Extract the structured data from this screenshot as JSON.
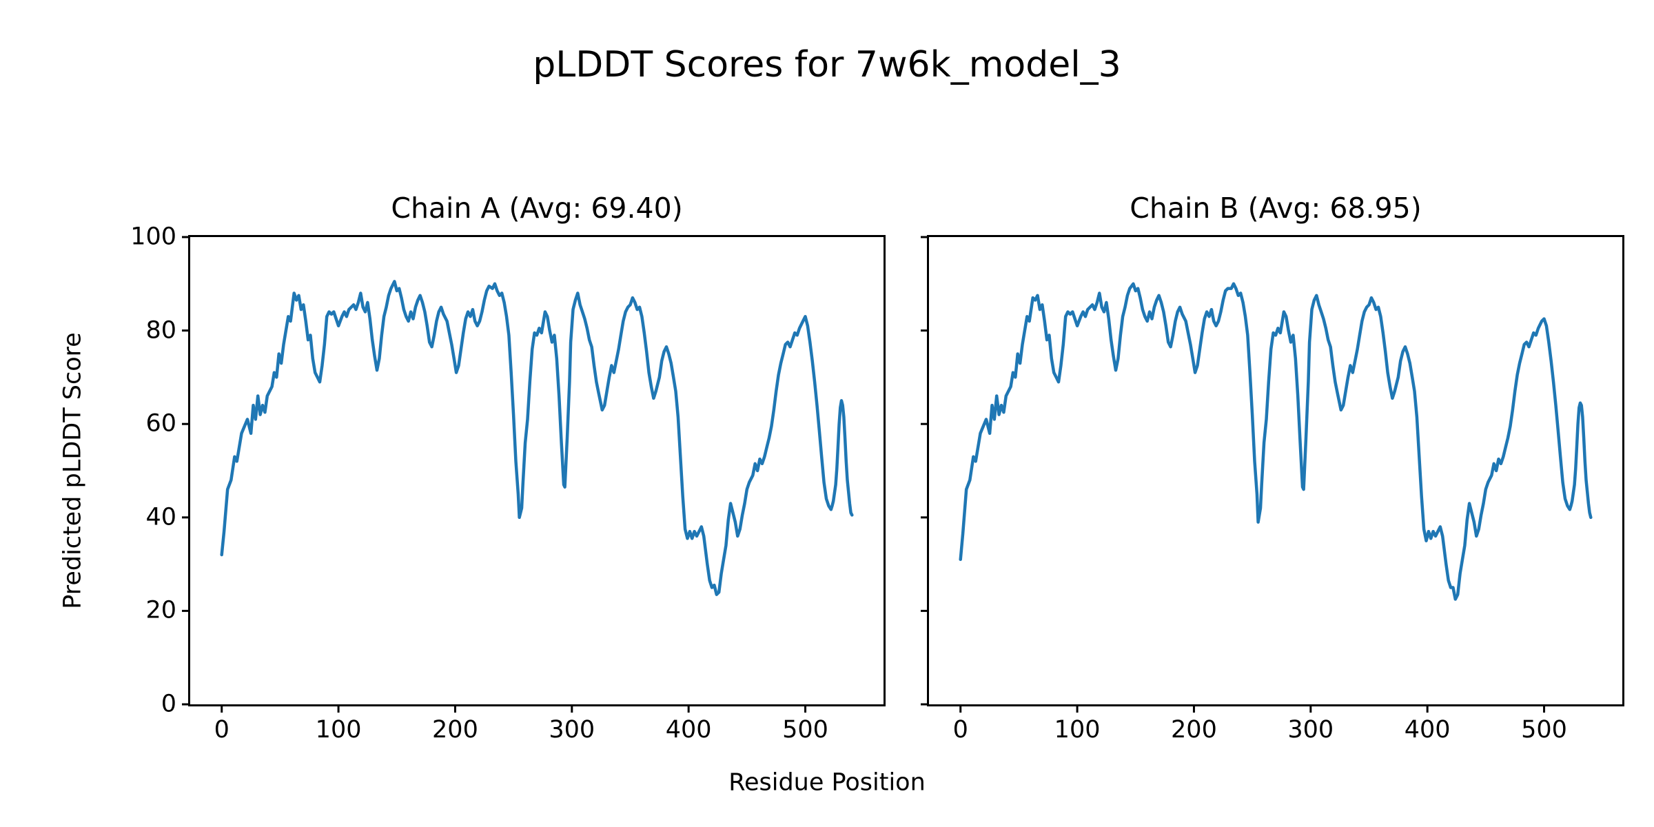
{
  "figure": {
    "suptitle": "pLDDT Scores for 7w6k_model_3",
    "xlabel": "Residue Position",
    "ylabel": "Predicted pLDDT Score",
    "background_color": "#ffffff",
    "text_color": "#000000",
    "line_color": "#1f77b4"
  },
  "chart_data": [
    {
      "type": "line",
      "title": "Chain A (Avg: 69.40)",
      "chain": "A",
      "average_plddt": 69.4,
      "xlim": [
        -27,
        567
      ],
      "ylim": [
        0,
        100
      ],
      "xticks": [
        0,
        100,
        200,
        300,
        400,
        500
      ],
      "yticks": [
        0,
        20,
        40,
        60,
        80,
        100
      ],
      "show_yticklabels": true,
      "grid": false,
      "legend": "none",
      "series": [
        {
          "name": "pLDDT",
          "color": "#1f77b4",
          "x": [
            0,
            2,
            5,
            8,
            11,
            13,
            17,
            22,
            25,
            27,
            29,
            31,
            33,
            35,
            37,
            39,
            43,
            45,
            47,
            49,
            51,
            53,
            57,
            59,
            62,
            64,
            66,
            68,
            70,
            72,
            74,
            76,
            78,
            80,
            82,
            84,
            86,
            88,
            90,
            92,
            94,
            96,
            98,
            100,
            103,
            105,
            107,
            109,
            111,
            113,
            115,
            117,
            119,
            121,
            123,
            125,
            127,
            129,
            131,
            133,
            135,
            137,
            139,
            141,
            143,
            145,
            148,
            150,
            152,
            154,
            156,
            158,
            160,
            162,
            164,
            166,
            168,
            170,
            172,
            174,
            176,
            178,
            180,
            182,
            184,
            186,
            188,
            190,
            193,
            195,
            197,
            199,
            201,
            203,
            205,
            207,
            209,
            211,
            213,
            215,
            217,
            219,
            221,
            223,
            225,
            227,
            229,
            232,
            234,
            236,
            238,
            240,
            242,
            244,
            246,
            248,
            250,
            252,
            254,
            255,
            257,
            258,
            260,
            262,
            264,
            266,
            268,
            270,
            272,
            274,
            277,
            279,
            281,
            283,
            285,
            287,
            289,
            291,
            293,
            294,
            296,
            298,
            299,
            301,
            303,
            305,
            307,
            309,
            311,
            313,
            315,
            317,
            319,
            321,
            323,
            326,
            328,
            330,
            332,
            334,
            336,
            338,
            340,
            342,
            344,
            346,
            348,
            350,
            352,
            354,
            356,
            358,
            360,
            362,
            364,
            366,
            368,
            370,
            372,
            375,
            377,
            379,
            381,
            383,
            385,
            387,
            389,
            391,
            393,
            395,
            397,
            399,
            401,
            403,
            405,
            407,
            409,
            411,
            413,
            416,
            418,
            420,
            422,
            424,
            426,
            428,
            430,
            432,
            434,
            436,
            438,
            440,
            442,
            444,
            446,
            448,
            450,
            452,
            455,
            457,
            459,
            461,
            463,
            465,
            467,
            469,
            471,
            473,
            475,
            477,
            479,
            481,
            483,
            485,
            487,
            489,
            491,
            493,
            495,
            498,
            500,
            502,
            504,
            506,
            508,
            510,
            512,
            514,
            516,
            518,
            520,
            522,
            523,
            524,
            526,
            527,
            528,
            529,
            530,
            531,
            532,
            533,
            534,
            535,
            536,
            537,
            538,
            539,
            540
          ],
          "y": [
            32,
            37,
            46,
            48,
            53,
            52,
            58,
            61,
            58,
            64,
            61,
            66,
            62,
            64,
            62.5,
            66,
            68,
            71,
            70,
            75,
            73,
            77,
            83,
            82,
            88,
            86.5,
            87.5,
            84.5,
            85.5,
            82,
            78,
            79,
            74,
            71,
            70,
            69,
            72.5,
            77,
            83,
            84,
            83.5,
            84,
            82.5,
            81,
            83,
            84,
            83,
            84.5,
            85,
            85.5,
            84.5,
            86,
            88,
            85,
            84,
            86,
            82.5,
            78,
            74.5,
            71.5,
            74,
            79,
            83,
            85,
            87.5,
            89,
            90.5,
            88.5,
            89,
            87,
            84.5,
            83,
            82,
            84,
            82.5,
            85,
            86.5,
            87.5,
            86,
            84,
            81,
            77.5,
            76.5,
            79,
            82,
            84,
            85,
            83.5,
            82,
            79.5,
            77,
            74,
            71,
            72.5,
            76,
            79.5,
            82.5,
            84,
            83,
            84.5,
            82,
            81,
            82,
            84,
            86.5,
            88.5,
            89.5,
            89,
            90,
            88.5,
            87.5,
            88,
            86,
            83,
            79,
            71,
            62,
            52,
            45,
            40,
            42,
            47,
            56,
            61,
            69,
            76,
            79.5,
            79,
            80.5,
            79.5,
            84,
            83,
            80,
            77.5,
            79,
            74,
            66,
            56,
            47,
            46.5,
            57,
            69,
            77.5,
            84.5,
            86.5,
            88,
            85.5,
            84,
            82.5,
            80.5,
            78,
            76.5,
            72.5,
            69,
            66.5,
            63,
            64,
            67,
            70,
            72.5,
            71,
            73.5,
            76,
            79,
            82,
            84,
            85,
            85.5,
            87,
            86,
            84.5,
            85,
            83,
            79.5,
            75.5,
            71,
            68,
            65.5,
            67,
            70,
            73.5,
            75.5,
            76.5,
            75,
            73,
            70,
            67,
            61.5,
            53,
            44.5,
            37.5,
            35.5,
            37,
            35.5,
            37,
            36,
            37,
            38,
            36,
            30,
            26.5,
            25,
            25.5,
            23.5,
            24,
            28,
            31,
            34,
            39.5,
            43,
            41,
            39,
            36,
            37.5,
            40.5,
            43,
            46,
            47.5,
            49,
            51.5,
            50,
            52.5,
            51.5,
            53,
            55,
            57,
            59.5,
            63,
            67,
            70.5,
            73,
            75,
            77,
            77.5,
            76.5,
            78,
            79.5,
            79,
            80.5,
            82,
            83,
            81,
            77.5,
            73.5,
            69,
            64,
            58.5,
            53,
            47.5,
            44,
            42.5,
            41.7,
            42.5,
            43.5,
            47,
            50.5,
            55,
            60,
            63.5,
            65,
            64,
            61.5,
            57,
            52,
            48,
            45.5,
            43,
            41,
            40.5
          ]
        }
      ]
    },
    {
      "type": "line",
      "title": "Chain B (Avg: 68.95)",
      "chain": "B",
      "average_plddt": 68.95,
      "xlim": [
        -27,
        567
      ],
      "ylim": [
        0,
        100
      ],
      "xticks": [
        0,
        100,
        200,
        300,
        400,
        500
      ],
      "yticks": [
        0,
        20,
        40,
        60,
        80,
        100
      ],
      "show_yticklabels": false,
      "grid": false,
      "legend": "none",
      "series": [
        {
          "name": "pLDDT",
          "color": "#1f77b4",
          "x": [
            0,
            2,
            5,
            8,
            11,
            13,
            17,
            22,
            25,
            27,
            29,
            31,
            33,
            35,
            37,
            39,
            43,
            45,
            47,
            49,
            51,
            53,
            57,
            59,
            62,
            64,
            66,
            68,
            70,
            72,
            74,
            76,
            78,
            80,
            82,
            84,
            86,
            88,
            90,
            92,
            94,
            96,
            98,
            100,
            103,
            105,
            107,
            109,
            111,
            113,
            115,
            117,
            119,
            121,
            123,
            125,
            127,
            129,
            131,
            133,
            135,
            137,
            139,
            141,
            143,
            145,
            148,
            150,
            152,
            154,
            156,
            158,
            160,
            162,
            164,
            166,
            168,
            170,
            172,
            174,
            176,
            178,
            180,
            182,
            184,
            186,
            188,
            190,
            193,
            195,
            197,
            199,
            201,
            203,
            205,
            207,
            209,
            211,
            213,
            215,
            217,
            219,
            221,
            223,
            225,
            227,
            229,
            232,
            234,
            236,
            238,
            240,
            242,
            244,
            246,
            248,
            250,
            252,
            254,
            255,
            257,
            258,
            260,
            262,
            264,
            266,
            268,
            270,
            272,
            274,
            277,
            279,
            281,
            283,
            285,
            287,
            289,
            291,
            293,
            294,
            296,
            298,
            299,
            301,
            303,
            305,
            307,
            309,
            311,
            313,
            315,
            317,
            319,
            321,
            323,
            326,
            328,
            330,
            332,
            334,
            336,
            338,
            340,
            342,
            344,
            346,
            348,
            350,
            352,
            354,
            356,
            358,
            360,
            362,
            364,
            366,
            368,
            370,
            372,
            375,
            377,
            379,
            381,
            383,
            385,
            387,
            389,
            391,
            393,
            395,
            397,
            399,
            401,
            403,
            405,
            407,
            409,
            411,
            413,
            416,
            418,
            420,
            422,
            424,
            426,
            428,
            430,
            432,
            434,
            436,
            438,
            440,
            442,
            444,
            446,
            448,
            450,
            452,
            455,
            457,
            459,
            461,
            463,
            465,
            467,
            469,
            471,
            473,
            475,
            477,
            479,
            481,
            483,
            485,
            487,
            489,
            491,
            493,
            495,
            498,
            500,
            502,
            504,
            506,
            508,
            510,
            512,
            514,
            516,
            518,
            520,
            522,
            523,
            524,
            526,
            527,
            528,
            529,
            530,
            531,
            532,
            533,
            534,
            535,
            536,
            537,
            538,
            539,
            540
          ],
          "y": [
            31,
            36.5,
            46,
            48,
            53,
            52,
            58,
            61,
            58,
            64,
            61,
            66,
            62,
            64,
            62.5,
            66,
            68,
            71,
            70,
            75,
            73,
            77,
            83,
            82,
            87,
            86.5,
            87.5,
            84.5,
            85.5,
            82,
            78,
            79,
            74,
            71,
            70,
            69,
            72.5,
            77,
            83,
            84,
            83.5,
            84,
            82.5,
            81,
            83,
            84,
            83,
            84.5,
            85,
            85.5,
            84.5,
            86,
            88,
            85,
            84,
            86,
            82.5,
            78,
            74.5,
            71.5,
            74,
            79,
            83,
            85,
            87.5,
            89,
            90,
            88.5,
            89,
            87,
            84.5,
            83,
            82,
            84,
            82.5,
            85,
            86.5,
            87.5,
            86,
            84,
            81,
            77.5,
            76.5,
            79,
            82,
            84,
            85,
            83.5,
            82,
            79.5,
            77,
            74,
            71,
            72.5,
            76,
            79.5,
            82.5,
            84,
            83,
            84.5,
            82,
            81,
            82,
            84,
            86.5,
            88.5,
            89,
            89,
            90,
            89,
            87.5,
            88,
            86,
            83,
            79,
            71,
            62,
            52,
            45,
            39,
            42,
            47,
            56,
            61,
            69,
            76,
            79.5,
            79,
            80.5,
            79.5,
            84,
            83,
            80,
            77.5,
            79,
            74,
            66,
            56,
            46.5,
            46,
            57,
            69,
            77.5,
            84.5,
            86.5,
            87.5,
            85.5,
            84,
            82.5,
            80.5,
            78,
            76.5,
            72.5,
            69,
            66.5,
            63,
            64,
            67,
            70,
            72.5,
            71,
            73.5,
            76,
            79,
            82,
            84,
            85,
            85.5,
            87,
            86,
            84.5,
            85,
            83,
            79.5,
            75.5,
            71,
            68,
            65.5,
            67,
            70,
            73.5,
            75.5,
            76.5,
            75,
            73,
            70,
            67,
            61.5,
            53,
            44.5,
            37.5,
            35,
            37,
            35.5,
            37,
            36,
            37,
            38,
            36,
            30,
            26.5,
            25,
            25,
            22.5,
            23.5,
            28,
            31,
            34,
            39.5,
            43,
            41,
            39,
            36,
            37.5,
            40.5,
            43,
            46,
            47.5,
            49,
            51.5,
            50,
            52.5,
            51.5,
            53,
            55,
            57,
            59.5,
            63,
            67,
            70.5,
            73,
            75,
            77,
            77.5,
            76.5,
            78,
            79.5,
            79,
            80.5,
            82,
            82.5,
            81,
            77.5,
            73.5,
            69,
            64,
            58.5,
            53,
            47.5,
            44,
            42.5,
            41.7,
            42.5,
            43.5,
            47,
            50.5,
            55,
            60,
            63.5,
            64.5,
            64,
            61.5,
            57,
            52,
            48,
            45.5,
            43,
            41,
            40
          ]
        }
      ]
    }
  ]
}
